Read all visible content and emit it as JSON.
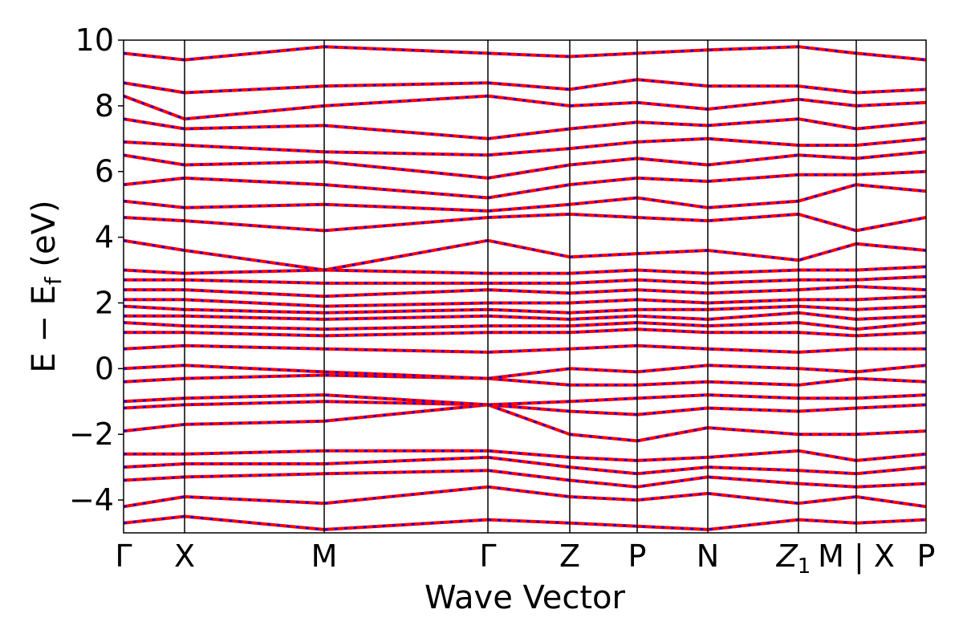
{
  "chart_data": {
    "type": "line",
    "title": "",
    "xlabel": "Wave Vector",
    "ylabel": {
      "main": "E − E",
      "subscript": "f",
      "unit": " (eV)"
    },
    "ylim": [
      -5,
      10
    ],
    "yticks": [
      {
        "value": 10,
        "label": "10"
      },
      {
        "value": 8,
        "label": "8"
      },
      {
        "value": 6,
        "label": "6"
      },
      {
        "value": 4,
        "label": "4"
      },
      {
        "value": 2,
        "label": "2"
      },
      {
        "value": 0,
        "label": "0"
      },
      {
        "value": -2,
        "label": "−2"
      },
      {
        "value": -4,
        "label": "−4"
      }
    ],
    "path_nodes": [
      {
        "x": 0.0,
        "label": "Γ"
      },
      {
        "x": 0.076,
        "label": "X"
      },
      {
        "x": 0.25,
        "label": "M"
      },
      {
        "x": 0.454,
        "label": "Γ"
      },
      {
        "x": 0.556,
        "label": "Z"
      },
      {
        "x": 0.64,
        "label": "P"
      },
      {
        "x": 0.728,
        "label": "N"
      },
      {
        "x": 0.841,
        "label": "Z",
        "subscript": "1"
      },
      {
        "x": 0.913,
        "label": "M | X"
      },
      {
        "x": 1.0,
        "label": "P"
      }
    ],
    "xlim": [
      0.0,
      1.0
    ],
    "grid": false,
    "legend": "none",
    "series_styles": [
      {
        "style": "solid",
        "color": "#ff0000"
      },
      {
        "style": "dashed",
        "color": "#0000ff"
      }
    ],
    "bands": [
      {
        "x": [
          0,
          0.076,
          0.25,
          0.454,
          0.556,
          0.64,
          0.728,
          0.841,
          0.913,
          1.0
        ],
        "y": [
          -4.7,
          -4.5,
          -4.9,
          -4.6,
          -4.7,
          -4.8,
          -4.9,
          -4.6,
          -4.7,
          -4.6
        ]
      },
      {
        "x": [
          0,
          0.076,
          0.25,
          0.454,
          0.556,
          0.64,
          0.728,
          0.841,
          0.913,
          1.0
        ],
        "y": [
          -4.2,
          -3.9,
          -4.1,
          -3.6,
          -3.9,
          -4.0,
          -3.8,
          -4.1,
          -3.9,
          -4.2
        ]
      },
      {
        "x": [
          0,
          0.076,
          0.25,
          0.454,
          0.556,
          0.64,
          0.728,
          0.841,
          0.913,
          1.0
        ],
        "y": [
          -3.4,
          -3.3,
          -3.2,
          -3.1,
          -3.4,
          -3.6,
          -3.3,
          -3.5,
          -3.6,
          -3.5
        ]
      },
      {
        "x": [
          0,
          0.076,
          0.25,
          0.454,
          0.556,
          0.64,
          0.728,
          0.841,
          0.913,
          1.0
        ],
        "y": [
          -3.0,
          -2.9,
          -2.9,
          -2.7,
          -3.0,
          -3.2,
          -3.0,
          -3.1,
          -3.2,
          -3.0
        ]
      },
      {
        "x": [
          0,
          0.076,
          0.25,
          0.454,
          0.556,
          0.64,
          0.728,
          0.841,
          0.913,
          1.0
        ],
        "y": [
          -2.6,
          -2.6,
          -2.5,
          -2.5,
          -2.7,
          -2.8,
          -2.7,
          -2.5,
          -2.8,
          -2.6
        ]
      },
      {
        "x": [
          0,
          0.076,
          0.25,
          0.454,
          0.556,
          0.64,
          0.728,
          0.841,
          0.913,
          1.0
        ],
        "y": [
          -1.9,
          -1.7,
          -1.6,
          -1.1,
          -2.0,
          -2.2,
          -1.8,
          -2.0,
          -2.0,
          -1.9
        ]
      },
      {
        "x": [
          0,
          0.076,
          0.25,
          0.454,
          0.556,
          0.64,
          0.728,
          0.841,
          0.913,
          1.0
        ],
        "y": [
          -1.2,
          -1.1,
          -1.0,
          -1.1,
          -1.3,
          -1.4,
          -1.2,
          -1.3,
          -1.2,
          -1.1
        ]
      },
      {
        "x": [
          0,
          0.076,
          0.25,
          0.454,
          0.556,
          0.64,
          0.728,
          0.841,
          0.913,
          1.0
        ],
        "y": [
          -1.0,
          -0.9,
          -0.8,
          -1.1,
          -1.0,
          -0.9,
          -0.8,
          -0.9,
          -0.9,
          -0.8
        ]
      },
      {
        "x": [
          0,
          0.076,
          0.25,
          0.454,
          0.556,
          0.64,
          0.728,
          0.841,
          0.913,
          1.0
        ],
        "y": [
          -0.4,
          -0.3,
          -0.2,
          -0.3,
          -0.5,
          -0.5,
          -0.4,
          -0.5,
          -0.3,
          -0.4
        ]
      },
      {
        "x": [
          0,
          0.076,
          0.25,
          0.454,
          0.556,
          0.64,
          0.728,
          0.841,
          0.913,
          1.0
        ],
        "y": [
          0.0,
          0.1,
          -0.1,
          -0.3,
          0.0,
          -0.1,
          0.1,
          0.0,
          -0.1,
          0.1
        ]
      },
      {
        "x": [
          0,
          0.076,
          0.25,
          0.454,
          0.556,
          0.64,
          0.728,
          0.841,
          0.913,
          1.0
        ],
        "y": [
          0.6,
          0.7,
          0.6,
          0.5,
          0.6,
          0.7,
          0.6,
          0.5,
          0.6,
          0.6
        ]
      },
      {
        "x": [
          0,
          0.076,
          0.25,
          0.454,
          0.556,
          0.64,
          0.728,
          0.841,
          0.913,
          1.0
        ],
        "y": [
          1.1,
          1.1,
          1.0,
          1.1,
          1.1,
          1.2,
          1.1,
          1.1,
          1.0,
          1.1
        ]
      },
      {
        "x": [
          0,
          0.076,
          0.25,
          0.454,
          0.556,
          0.64,
          0.728,
          0.841,
          0.913,
          1.0
        ],
        "y": [
          1.4,
          1.3,
          1.2,
          1.3,
          1.3,
          1.4,
          1.3,
          1.4,
          1.2,
          1.4
        ]
      },
      {
        "x": [
          0,
          0.076,
          0.25,
          0.454,
          0.556,
          0.64,
          0.728,
          0.841,
          0.913,
          1.0
        ],
        "y": [
          1.6,
          1.6,
          1.5,
          1.6,
          1.5,
          1.6,
          1.5,
          1.7,
          1.5,
          1.6
        ]
      },
      {
        "x": [
          0,
          0.076,
          0.25,
          0.454,
          0.556,
          0.64,
          0.728,
          0.841,
          0.913,
          1.0
        ],
        "y": [
          1.9,
          1.8,
          1.7,
          1.8,
          1.7,
          1.8,
          1.8,
          1.9,
          1.8,
          1.9
        ]
      },
      {
        "x": [
          0,
          0.076,
          0.25,
          0.454,
          0.556,
          0.64,
          0.728,
          0.841,
          0.913,
          1.0
        ],
        "y": [
          2.1,
          2.1,
          1.9,
          2.0,
          2.0,
          2.1,
          2.0,
          2.1,
          2.1,
          2.2
        ]
      },
      {
        "x": [
          0,
          0.076,
          0.25,
          0.454,
          0.556,
          0.64,
          0.728,
          0.841,
          0.913,
          1.0
        ],
        "y": [
          2.4,
          2.4,
          2.2,
          2.4,
          2.3,
          2.4,
          2.3,
          2.4,
          2.5,
          2.4
        ]
      },
      {
        "x": [
          0,
          0.076,
          0.25,
          0.454,
          0.556,
          0.64,
          0.728,
          0.841,
          0.913,
          1.0
        ],
        "y": [
          2.7,
          2.7,
          2.6,
          2.6,
          2.6,
          2.7,
          2.6,
          2.7,
          2.7,
          2.8
        ]
      },
      {
        "x": [
          0,
          0.076,
          0.25,
          0.454,
          0.556,
          0.64,
          0.728,
          0.841,
          0.913,
          1.0
        ],
        "y": [
          3.0,
          2.9,
          3.0,
          2.9,
          2.9,
          3.0,
          2.9,
          3.0,
          3.0,
          3.1
        ]
      },
      {
        "x": [
          0,
          0.076,
          0.25,
          0.454,
          0.556,
          0.64,
          0.728,
          0.841,
          0.913,
          1.0
        ],
        "y": [
          3.9,
          3.6,
          3.0,
          3.9,
          3.4,
          3.5,
          3.6,
          3.3,
          3.8,
          3.6
        ]
      },
      {
        "x": [
          0,
          0.076,
          0.25,
          0.454,
          0.556,
          0.64,
          0.728,
          0.841,
          0.913,
          1.0
        ],
        "y": [
          4.6,
          4.5,
          4.2,
          4.6,
          4.7,
          4.6,
          4.5,
          4.7,
          4.2,
          4.6
        ]
      },
      {
        "x": [
          0,
          0.076,
          0.25,
          0.454,
          0.556,
          0.64,
          0.728,
          0.841,
          0.913,
          1.0
        ],
        "y": [
          5.1,
          4.9,
          5.0,
          4.8,
          5.0,
          5.2,
          4.9,
          5.1,
          5.6,
          5.4
        ]
      },
      {
        "x": [
          0,
          0.076,
          0.25,
          0.454,
          0.556,
          0.64,
          0.728,
          0.841,
          0.913,
          1.0
        ],
        "y": [
          5.6,
          5.8,
          5.6,
          5.2,
          5.6,
          5.8,
          5.7,
          5.9,
          5.9,
          6.0
        ]
      },
      {
        "x": [
          0,
          0.076,
          0.25,
          0.454,
          0.556,
          0.64,
          0.728,
          0.841,
          0.913,
          1.0
        ],
        "y": [
          6.5,
          6.2,
          6.3,
          5.8,
          6.2,
          6.4,
          6.2,
          6.5,
          6.4,
          6.6
        ]
      },
      {
        "x": [
          0,
          0.076,
          0.25,
          0.454,
          0.556,
          0.64,
          0.728,
          0.841,
          0.913,
          1.0
        ],
        "y": [
          6.9,
          6.8,
          6.6,
          6.5,
          6.7,
          6.9,
          7.0,
          6.8,
          6.8,
          7.0
        ]
      },
      {
        "x": [
          0,
          0.076,
          0.25,
          0.454,
          0.556,
          0.64,
          0.728,
          0.841,
          0.913,
          1.0
        ],
        "y": [
          7.6,
          7.3,
          7.4,
          7.0,
          7.3,
          7.5,
          7.4,
          7.6,
          7.3,
          7.5
        ]
      },
      {
        "x": [
          0,
          0.076,
          0.25,
          0.454,
          0.556,
          0.64,
          0.728,
          0.841,
          0.913,
          1.0
        ],
        "y": [
          8.3,
          7.6,
          8.0,
          8.3,
          8.0,
          8.1,
          7.9,
          8.2,
          8.0,
          8.1
        ]
      },
      {
        "x": [
          0,
          0.076,
          0.25,
          0.454,
          0.556,
          0.64,
          0.728,
          0.841,
          0.913,
          1.0
        ],
        "y": [
          8.7,
          8.4,
          8.6,
          8.7,
          8.5,
          8.8,
          8.6,
          8.6,
          8.4,
          8.5
        ]
      },
      {
        "x": [
          0,
          0.076,
          0.25,
          0.454,
          0.556,
          0.64,
          0.728,
          0.841,
          0.913,
          1.0
        ],
        "y": [
          9.6,
          9.4,
          9.8,
          9.6,
          9.5,
          9.6,
          9.7,
          9.8,
          9.6,
          9.4
        ]
      }
    ]
  }
}
